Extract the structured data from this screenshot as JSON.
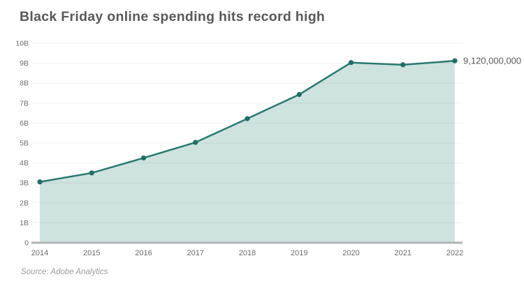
{
  "header": {
    "title": "Black Friday online spending hits record high"
  },
  "footer": {
    "source": "Source: Adobe Analytics"
  },
  "chart_data": {
    "type": "area",
    "title": "Black Friday online spending hits record high",
    "categories": [
      "2014",
      "2015",
      "2016",
      "2017",
      "2018",
      "2019",
      "2020",
      "2021",
      "2022"
    ],
    "values": [
      3.05,
      3.5,
      4.25,
      5.03,
      6.22,
      7.43,
      9.03,
      8.92,
      9.12
    ],
    "unit": "B",
    "xlabel": "",
    "ylabel": "",
    "ylim": [
      0,
      10
    ],
    "ytick_labels": [
      "0",
      "1B",
      "2B",
      "3B",
      "4B",
      "5B",
      "6B",
      "7B",
      "8B",
      "9B",
      "10B"
    ],
    "grid": "horizontal",
    "legend": "none",
    "annotation": {
      "text": "9,120,000,000",
      "target_category": "2022",
      "target_value": 9.12
    },
    "source": "Source: Adobe Analytics",
    "colors": {
      "line": "#27796f",
      "marker": "#1e6e64",
      "fill": "#cee3e0",
      "gridline_rgba": "rgba(60,60,60,0.08)",
      "baseline": "#b1b4b4",
      "axis_text": "#6b6b6b",
      "annotation_text": "#5a5a5a",
      "title_text": "#58595b"
    }
  }
}
